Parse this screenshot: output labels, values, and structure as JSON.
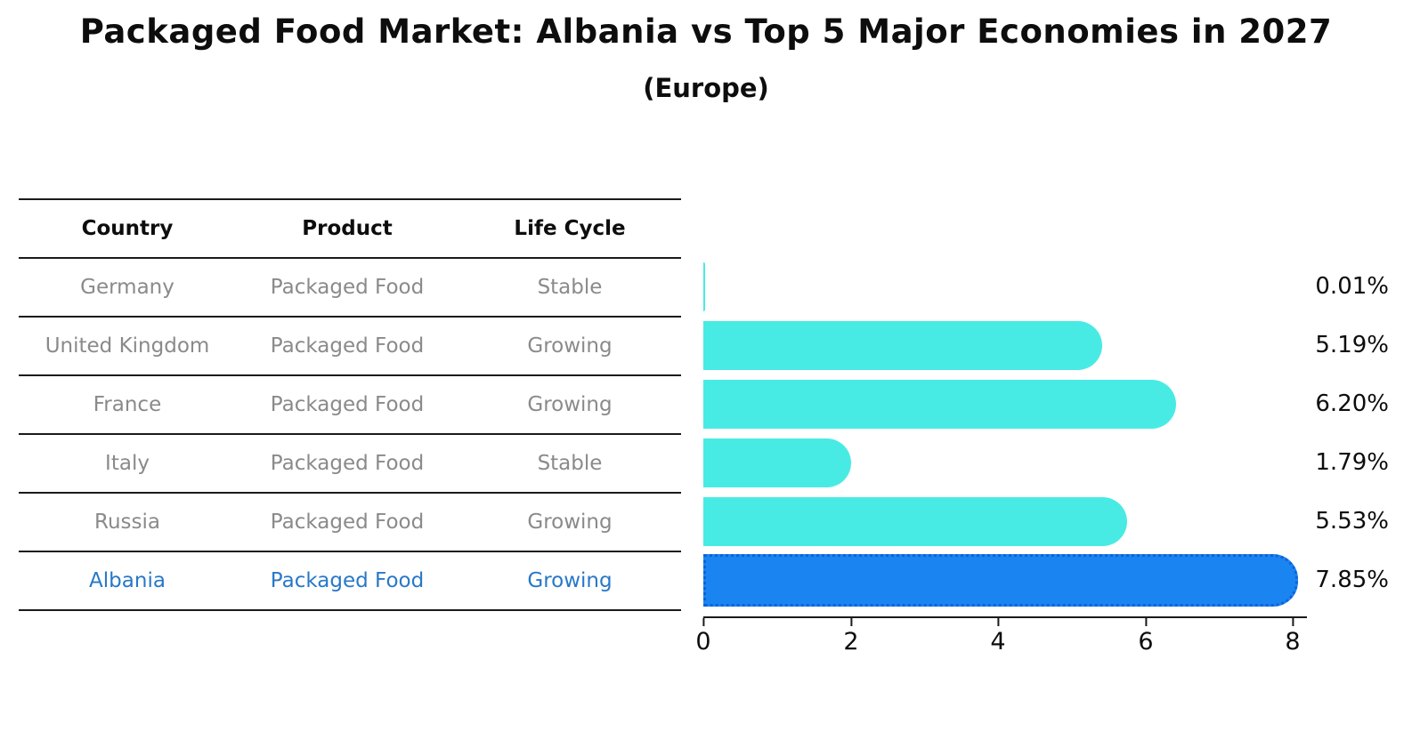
{
  "title": "Packaged Food Market: Albania vs Top 5 Major Economies in 2027",
  "subtitle": "(Europe)",
  "table": {
    "headers": [
      "Country",
      "Product",
      "Life Cycle"
    ],
    "rows": [
      {
        "country": "Germany",
        "product": "Packaged Food",
        "life_cycle": "Stable"
      },
      {
        "country": "United Kingdom",
        "product": "Packaged Food",
        "life_cycle": "Growing"
      },
      {
        "country": "France",
        "product": "Packaged Food",
        "life_cycle": "Growing"
      },
      {
        "country": "Italy",
        "product": "Packaged Food",
        "life_cycle": "Stable"
      },
      {
        "country": "Russia",
        "product": "Packaged Food",
        "life_cycle": "Growing"
      },
      {
        "country": "Albania",
        "product": "Packaged Food",
        "life_cycle": "Growing"
      }
    ],
    "highlight_row": "Albania"
  },
  "chart_data": {
    "type": "bar",
    "orientation": "horizontal",
    "title": "Packaged Food Market: Albania vs Top 5 Major Economies in 2027",
    "subtitle": "(Europe)",
    "categories": [
      "Germany",
      "United Kingdom",
      "France",
      "Italy",
      "Russia",
      "Albania"
    ],
    "values": [
      0.01,
      5.19,
      6.2,
      1.79,
      5.53,
      7.85
    ],
    "value_labels": [
      "0.01%",
      "5.19%",
      "6.20%",
      "1.79%",
      "5.53%",
      "7.85%"
    ],
    "x_ticks": [
      0,
      2,
      4,
      6,
      8
    ],
    "xlim": [
      0,
      8.19
    ],
    "grid": false,
    "legend": "none",
    "highlight_index": 5,
    "colors": {
      "bar": "#48ebe4",
      "highlight_bar": "#1a84f0",
      "highlight_border": "#0f62d9",
      "text": "#0d0d0d",
      "muted_text": "#8a8a8a",
      "highlight_text": "#2878c8"
    }
  }
}
